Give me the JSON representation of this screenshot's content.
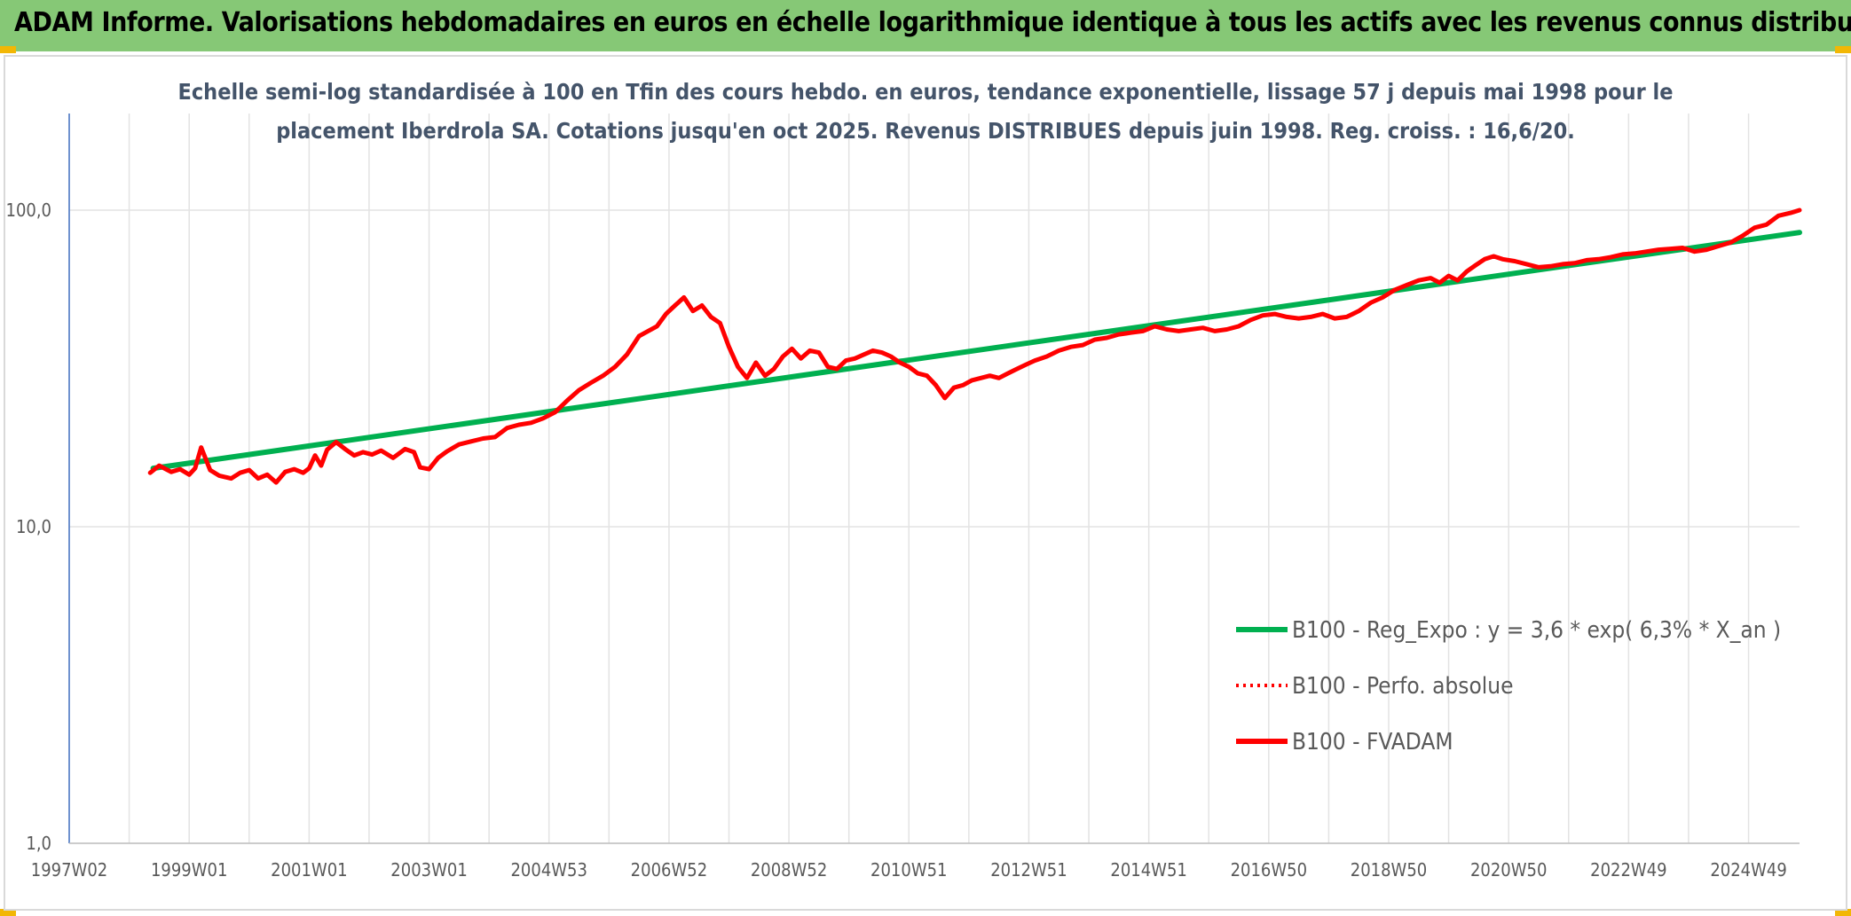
{
  "header": {
    "title": "ADAM Informe. Valorisations hebdomadaires en euros en échelle logarithmique identique à tous les actifs avec les revenus connus distribués",
    "background": "#86c876"
  },
  "chart_data": {
    "type": "line",
    "title_line1": "Echelle semi-log standardisée à 100 en Tfin des cours hebdo. en euros, tendance exponentielle, lissage 57 j depuis mai 1998 pour le",
    "title_line2": "placement Iberdrola SA. Cotations jusqu'en oct 2025. Revenus DISTRIBUES depuis juin 1998. Reg. croiss. : 16,6/20.",
    "y_scale": "log",
    "ylim": [
      1,
      200
    ],
    "y_ticks": [
      {
        "value": 1,
        "label": "1,0"
      },
      {
        "value": 10,
        "label": "10,0"
      },
      {
        "value": 100,
        "label": "100,0"
      }
    ],
    "x_start_year": 1997.0,
    "x_end_year": 2025.85,
    "x_ticks": [
      {
        "year": 1997.0,
        "label": "1997W02"
      },
      {
        "year": 1999.0,
        "label": "1999W01"
      },
      {
        "year": 2001.0,
        "label": "2001W01"
      },
      {
        "year": 2003.0,
        "label": "2003W01"
      },
      {
        "year": 2005.0,
        "label": "2004W53"
      },
      {
        "year": 2007.0,
        "label": "2006W52"
      },
      {
        "year": 2009.0,
        "label": "2008W52"
      },
      {
        "year": 2011.0,
        "label": "2010W51"
      },
      {
        "year": 2013.0,
        "label": "2012W51"
      },
      {
        "year": 2015.0,
        "label": "2014W51"
      },
      {
        "year": 2017.0,
        "label": "2016W50"
      },
      {
        "year": 2019.0,
        "label": "2018W50"
      },
      {
        "year": 2021.0,
        "label": "2020W50"
      },
      {
        "year": 2023.0,
        "label": "2022W49"
      },
      {
        "year": 2025.0,
        "label": "2024W49"
      }
    ],
    "grid": true,
    "legend_position": "right",
    "series": [
      {
        "name": "B100 - Reg_Expo : y = 3,6 * exp( 6,3% *  X_an )",
        "color": "#00b050",
        "style": "solid",
        "x": [
          1998.4,
          2025.85
        ],
        "y": [
          15.3,
          85.0
        ]
      },
      {
        "name": "B100 - Perfo. absolue",
        "color": "#ff0000",
        "style": "dotted",
        "x": [],
        "y": []
      },
      {
        "name": "B100 - FVADAM",
        "color": "#ff0000",
        "style": "solid",
        "x": [
          1998.35,
          1998.5,
          1998.7,
          1998.85,
          1999.0,
          1999.1,
          1999.2,
          1999.35,
          1999.5,
          1999.7,
          1999.85,
          2000.0,
          2000.15,
          2000.3,
          2000.45,
          2000.6,
          2000.75,
          2000.9,
          2001.0,
          2001.1,
          2001.2,
          2001.3,
          2001.45,
          2001.6,
          2001.75,
          2001.9,
          2002.05,
          2002.2,
          2002.4,
          2002.6,
          2002.75,
          2002.85,
          2003.0,
          2003.15,
          2003.3,
          2003.5,
          2003.7,
          2003.9,
          2004.1,
          2004.3,
          2004.5,
          2004.7,
          2004.9,
          2005.1,
          2005.3,
          2005.5,
          2005.7,
          2005.9,
          2006.1,
          2006.3,
          2006.5,
          2006.65,
          2006.8,
          2006.95,
          2007.1,
          2007.25,
          2007.4,
          2007.55,
          2007.7,
          2007.85,
          2008.0,
          2008.15,
          2008.3,
          2008.45,
          2008.6,
          2008.75,
          2008.9,
          2009.05,
          2009.2,
          2009.35,
          2009.5,
          2009.65,
          2009.8,
          2009.95,
          2010.1,
          2010.25,
          2010.4,
          2010.55,
          2010.7,
          2010.85,
          2011.0,
          2011.15,
          2011.3,
          2011.45,
          2011.6,
          2011.75,
          2011.9,
          2012.05,
          2012.2,
          2012.35,
          2012.5,
          2012.65,
          2012.8,
          2012.95,
          2013.1,
          2013.3,
          2013.5,
          2013.7,
          2013.9,
          2014.1,
          2014.3,
          2014.5,
          2014.7,
          2014.9,
          2015.1,
          2015.3,
          2015.5,
          2015.7,
          2015.9,
          2016.1,
          2016.3,
          2016.5,
          2016.7,
          2016.9,
          2017.1,
          2017.3,
          2017.5,
          2017.7,
          2017.9,
          2018.1,
          2018.3,
          2018.5,
          2018.7,
          2018.9,
          2019.1,
          2019.3,
          2019.5,
          2019.7,
          2019.85,
          2020.0,
          2020.15,
          2020.3,
          2020.45,
          2020.6,
          2020.75,
          2020.9,
          2021.1,
          2021.3,
          2021.5,
          2021.7,
          2021.9,
          2022.1,
          2022.3,
          2022.5,
          2022.7,
          2022.9,
          2023.1,
          2023.3,
          2023.5,
          2023.7,
          2023.9,
          2024.1,
          2024.3,
          2024.5,
          2024.7,
          2024.9,
          2025.1,
          2025.3,
          2025.5,
          2025.7,
          2025.85
        ],
        "y": [
          14.8,
          15.6,
          14.9,
          15.2,
          14.6,
          15.3,
          17.8,
          15.1,
          14.5,
          14.2,
          14.8,
          15.1,
          14.2,
          14.6,
          13.8,
          14.9,
          15.2,
          14.8,
          15.3,
          16.8,
          15.6,
          17.5,
          18.5,
          17.6,
          16.8,
          17.2,
          16.9,
          17.4,
          16.5,
          17.6,
          17.2,
          15.4,
          15.2,
          16.5,
          17.3,
          18.2,
          18.6,
          19.0,
          19.2,
          20.5,
          21.0,
          21.3,
          22.0,
          23.0,
          25.0,
          27.0,
          28.5,
          30.0,
          32.0,
          35.0,
          40.0,
          41.5,
          43.0,
          47.0,
          50.0,
          53.0,
          48.0,
          50.0,
          46.0,
          44.0,
          37.0,
          32.0,
          29.5,
          33.0,
          30.0,
          31.5,
          34.5,
          36.5,
          34.0,
          36.0,
          35.5,
          32.0,
          31.5,
          33.5,
          34.0,
          35.0,
          36.0,
          35.5,
          34.5,
          33.0,
          32.0,
          30.5,
          30.0,
          28.0,
          25.5,
          27.5,
          28.0,
          29.0,
          29.5,
          30.0,
          29.5,
          30.5,
          31.5,
          32.5,
          33.5,
          34.5,
          36.0,
          37.0,
          37.5,
          39.0,
          39.5,
          40.5,
          41.0,
          41.5,
          43.0,
          42.0,
          41.5,
          42.0,
          42.5,
          41.5,
          42.0,
          43.0,
          45.0,
          46.5,
          47.0,
          46.0,
          45.5,
          46.0,
          47.0,
          45.5,
          46.0,
          48.0,
          51.0,
          53.0,
          56.0,
          58.0,
          60.0,
          61.0,
          59.0,
          62.0,
          60.0,
          64.0,
          67.0,
          70.0,
          71.5,
          70.0,
          69.0,
          67.5,
          66.0,
          66.5,
          67.5,
          68.0,
          69.5,
          70.0,
          71.0,
          72.5,
          73.0,
          74.0,
          75.0,
          75.5,
          76.0,
          74.0,
          75.0,
          77.0,
          79.0,
          83.0,
          88.0,
          90.0,
          96.0,
          98.0,
          100.0
        ]
      }
    ]
  }
}
